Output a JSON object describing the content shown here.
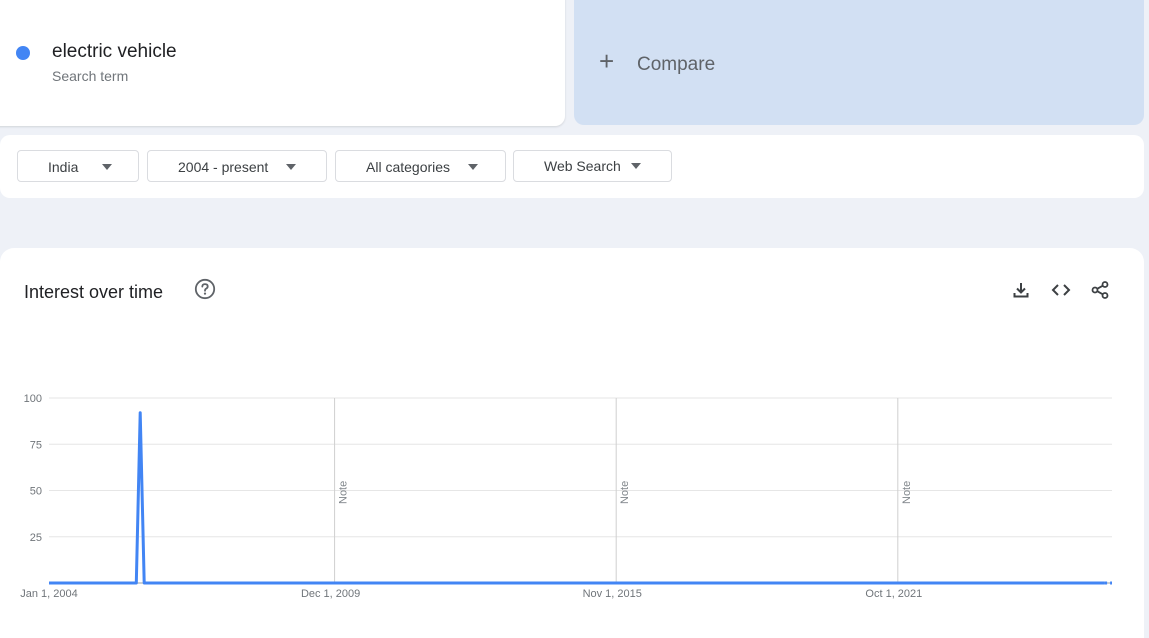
{
  "search_term": {
    "name": "electric vehicle",
    "subtitle": "Search term",
    "color": "#4285f4"
  },
  "compare": {
    "label": "Compare"
  },
  "filters": {
    "region": "India",
    "time_range": "2004 - present",
    "category": "All categories",
    "search_type": "Web Search"
  },
  "panel": {
    "title": "Interest over time",
    "actions": [
      "download-icon",
      "embed-code-icon",
      "share-icon"
    ],
    "help_icon": "help-circle-icon"
  },
  "chart_data": {
    "type": "line",
    "y_ticks": [
      "100",
      "75",
      "50",
      "25"
    ],
    "x_tick_labels": [
      "Jan 1, 2004",
      "Dec 1, 2009",
      "Nov 1, 2015",
      "Oct 1, 2021"
    ],
    "ylim": [
      0,
      100
    ],
    "notes": [
      "Note",
      "Note",
      "Note"
    ],
    "note_months": [
      72,
      143,
      214
    ],
    "partial_data_points": 2,
    "series": [
      {
        "name": "electric vehicle",
        "color": "#4285f4",
        "values": [
          0,
          0,
          0,
          0,
          0,
          0,
          0,
          0,
          0,
          0,
          0,
          0,
          0,
          0,
          0,
          0,
          0,
          0,
          0,
          0,
          0,
          0,
          0,
          92,
          0,
          0,
          0,
          0,
          0,
          0,
          0,
          0,
          0,
          0,
          0,
          0,
          0,
          0,
          0,
          0,
          0,
          0,
          0,
          0,
          0,
          0,
          0,
          0,
          0,
          0,
          0,
          0,
          0,
          0,
          0,
          0,
          0,
          0,
          0,
          0,
          0,
          0,
          0,
          0,
          0,
          0,
          0,
          0,
          0,
          0,
          0,
          0,
          0,
          0,
          0,
          0,
          0,
          0,
          0,
          0,
          0,
          0,
          0,
          0,
          0,
          0,
          0,
          0,
          0,
          0,
          0,
          0,
          0,
          0,
          0,
          0,
          0,
          0,
          0,
          0,
          0,
          0,
          0,
          0,
          0,
          0,
          0,
          0,
          0,
          0,
          0,
          0,
          0,
          0,
          0,
          0,
          0,
          0,
          0,
          0,
          0,
          0,
          0,
          0,
          0,
          0,
          0,
          0,
          0,
          0,
          0,
          0,
          0,
          0,
          0,
          0,
          0,
          0,
          0,
          0,
          0,
          0,
          0,
          0,
          0,
          0,
          0,
          0,
          0,
          0,
          0,
          0,
          0,
          0,
          0,
          0,
          0,
          0,
          0,
          0,
          0,
          0,
          0,
          0,
          0,
          0,
          0,
          0,
          0,
          0,
          0,
          0,
          0,
          0,
          0,
          0,
          0,
          0,
          0,
          0,
          0,
          0,
          0,
          0,
          0,
          0,
          0,
          0,
          0,
          0,
          0,
          0,
          0,
          0,
          0,
          0,
          0,
          0,
          0,
          0,
          0,
          0,
          0,
          0,
          0,
          0,
          0,
          0,
          0,
          0,
          0,
          0,
          0,
          0,
          0,
          0,
          0,
          0,
          0,
          0,
          0,
          0,
          0,
          0,
          0,
          0,
          0,
          0,
          0,
          0,
          0,
          0,
          0,
          0,
          0,
          0,
          0,
          0,
          0,
          0,
          0,
          0,
          0,
          0,
          0,
          0,
          0,
          0,
          0,
          0,
          0,
          0,
          0,
          0,
          0,
          0,
          0,
          0,
          0,
          0,
          0,
          0,
          0,
          0,
          0,
          0,
          0,
          0,
          0
        ]
      }
    ]
  }
}
